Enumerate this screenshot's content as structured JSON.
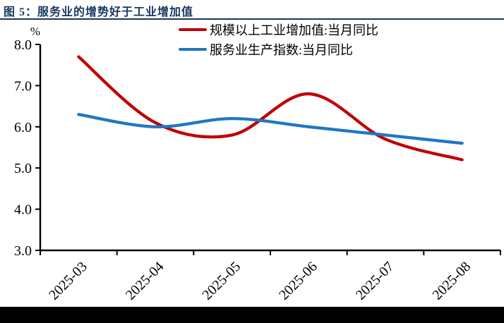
{
  "title": "图 5：服务业的增势好于工业增加值",
  "unit_label": "%",
  "colors": {
    "title": "#17375E",
    "title_rule": "#17375E",
    "axis": "#000000",
    "footer_bar": "#000000",
    "series_red": "#C00000",
    "series_blue": "#2176C4"
  },
  "chart_data": {
    "type": "line",
    "title": "图 5：服务业的增势好于工业增加值",
    "categories": [
      "2025-03",
      "2025-04",
      "2025-05",
      "2025-06",
      "2025-07",
      "2025-08"
    ],
    "series": [
      {
        "name": "规模以上工业增加值:当月同比",
        "color": "#C00000",
        "values": [
          7.7,
          6.1,
          5.8,
          6.8,
          5.7,
          5.2
        ]
      },
      {
        "name": "服务业生产指数:当月同比",
        "color": "#2176C4",
        "values": [
          6.3,
          6.0,
          6.2,
          6.0,
          5.8,
          5.6
        ]
      }
    ],
    "xlabel": "",
    "ylabel": "%",
    "ylim": [
      3.0,
      8.0
    ],
    "y_step": 1.0,
    "y_tick_labels": [
      "8.0",
      "7.0",
      "6.0",
      "5.0",
      "4.0",
      "3.0"
    ],
    "grid": false,
    "line_smoothing": true,
    "legend_position": "top-center"
  }
}
